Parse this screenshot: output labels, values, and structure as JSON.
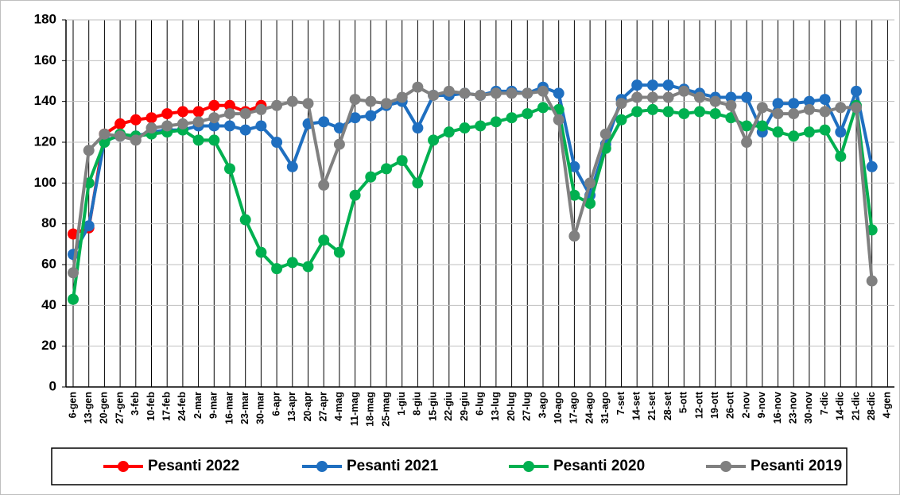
{
  "chart_data": {
    "type": "line",
    "categories": [
      "6-gen",
      "13-gen",
      "20-gen",
      "27-gen",
      "3-feb",
      "10-feb",
      "17-feb",
      "24-feb",
      "2-mar",
      "9-mar",
      "16-mar",
      "23-mar",
      "30-mar",
      "6-apr",
      "13-apr",
      "20-apr",
      "27-apr",
      "4-mag",
      "11-mag",
      "18-mag",
      "25-mag",
      "1-giu",
      "8-giu",
      "15-giu",
      "22-giu",
      "29-giu",
      "6-lug",
      "13-lug",
      "20-lug",
      "27-lug",
      "3-ago",
      "10-ago",
      "17-ago",
      "24-ago",
      "31-ago",
      "7-set",
      "14-set",
      "21-set",
      "28-set",
      "5-ott",
      "12-ott",
      "19-ott",
      "26-ott",
      "2-nov",
      "9-nov",
      "16-nov",
      "23-nov",
      "30-nov",
      "7-dic",
      "14-dic",
      "21-dic",
      "28-dic",
      "4-gen"
    ],
    "series": [
      {
        "name": "Pesanti 2022",
        "color": "#ff0000",
        "values": [
          75,
          78,
          124,
          129,
          131,
          132,
          134,
          135,
          135,
          138,
          138,
          135,
          138,
          null,
          null,
          null,
          null,
          null,
          null,
          null,
          null,
          null,
          null,
          null,
          null,
          null,
          null,
          null,
          null,
          null,
          null,
          null,
          null,
          null,
          null,
          null,
          null,
          null,
          null,
          null,
          null,
          null,
          null,
          null,
          null,
          null,
          null,
          null,
          null,
          null,
          null,
          null,
          null
        ]
      },
      {
        "name": "Pesanti 2021",
        "color": "#1f6fc0",
        "values": [
          65,
          79,
          121,
          123,
          123,
          125,
          126,
          126,
          128,
          128,
          128,
          126,
          128,
          120,
          108,
          129,
          130,
          127,
          132,
          133,
          138,
          140,
          127,
          143,
          143,
          144,
          143,
          145,
          145,
          144,
          147,
          144,
          108,
          94,
          119,
          141,
          148,
          148,
          148,
          146,
          144,
          142,
          142,
          142,
          125,
          139,
          139,
          140,
          141,
          125,
          145,
          108,
          null
        ]
      },
      {
        "name": "Pesanti 2020",
        "color": "#00b050",
        "values": [
          43,
          100,
          120,
          124,
          123,
          124,
          125,
          126,
          121,
          121,
          107,
          82,
          66,
          58,
          61,
          59,
          72,
          66,
          94,
          103,
          107,
          111,
          100,
          121,
          125,
          127,
          128,
          130,
          132,
          134,
          137,
          136,
          94,
          90,
          117,
          131,
          135,
          136,
          135,
          134,
          135,
          134,
          132,
          128,
          128,
          125,
          123,
          125,
          126,
          113,
          138,
          77,
          null
        ]
      },
      {
        "name": "Pesanti 2019",
        "color": "#808080",
        "values": [
          56,
          116,
          124,
          123,
          121,
          127,
          128,
          129,
          130,
          132,
          134,
          134,
          136,
          138,
          140,
          139,
          99,
          119,
          141,
          140,
          139,
          142,
          147,
          143,
          145,
          144,
          143,
          144,
          144,
          144,
          145,
          131,
          74,
          100,
          124,
          139,
          142,
          142,
          142,
          145,
          142,
          140,
          138,
          120,
          137,
          134,
          134,
          136,
          135,
          137,
          137,
          52,
          null
        ]
      }
    ],
    "ylim": [
      0,
      180
    ],
    "yticks": [
      0,
      20,
      40,
      60,
      80,
      100,
      120,
      140,
      160,
      180
    ],
    "grid": true,
    "legend": "bottom"
  }
}
